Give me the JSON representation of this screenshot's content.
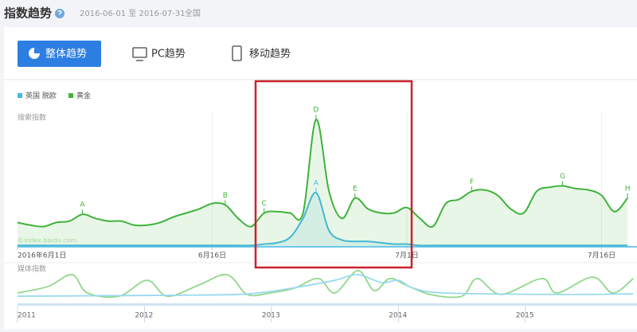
{
  "header": {
    "title": "指数趋势",
    "date_range": "2016-06-01 至 2016-07-31",
    "region": "全国"
  },
  "tabs": [
    "整体趋势",
    "PC趋势",
    "移动趋势"
  ],
  "chart_data": [
    {
      "type": "line",
      "area": true,
      "subtitle": "搜索指数",
      "watermark": "©index.baidu.com",
      "categories": [
        "2016年6月1日",
        null,
        null,
        null,
        null,
        null,
        null,
        null,
        null,
        null,
        null,
        null,
        null,
        null,
        null,
        "6月16日",
        null,
        null,
        null,
        null,
        null,
        null,
        null,
        null,
        null,
        null,
        null,
        null,
        null,
        null,
        "7月1日",
        null,
        null,
        null,
        null,
        null,
        null,
        null,
        null,
        null,
        null,
        null,
        null,
        null,
        null,
        "7月16日",
        null,
        null
      ],
      "ylim": [
        0,
        100
      ],
      "grid": true,
      "series": [
        {
          "name": "英国 脱欧",
          "color": "#46b8e6",
          "values": [
            1,
            1,
            1,
            1,
            1,
            1,
            1,
            1,
            1,
            1,
            1,
            1,
            1,
            1,
            1,
            1,
            1,
            1,
            1,
            2,
            3,
            7,
            21,
            40,
            12,
            5,
            4,
            4,
            3,
            2,
            2,
            1,
            1,
            1,
            1,
            1,
            1,
            1,
            1,
            1,
            1,
            1,
            1,
            1,
            1,
            1,
            1,
            1
          ]
        },
        {
          "name": "黄金",
          "color": "#3fb33b",
          "values": [
            18,
            16,
            15,
            18,
            19,
            24,
            21,
            19,
            19,
            16,
            16,
            18,
            22,
            25,
            28,
            32,
            31,
            21,
            15,
            25,
            26,
            25,
            25,
            94,
            41,
            21,
            36,
            28,
            25,
            25,
            29,
            21,
            15,
            32,
            35,
            41,
            42,
            38,
            28,
            25,
            41,
            44,
            45,
            43,
            42,
            38,
            26,
            36
          ]
        }
      ],
      "annotations": [
        {
          "text": "A",
          "series": 1,
          "index": 5
        },
        {
          "text": "B",
          "series": 1,
          "index": 16
        },
        {
          "text": "C",
          "series": 1,
          "index": 19
        },
        {
          "text": "D",
          "series": 1,
          "index": 23
        },
        {
          "text": "A",
          "series": 0,
          "index": 23
        },
        {
          "text": "E",
          "series": 1,
          "index": 26
        },
        {
          "text": "F",
          "series": 1,
          "index": 35
        },
        {
          "text": "G",
          "series": 1,
          "index": 42
        },
        {
          "text": "H",
          "series": 1,
          "index": 47
        }
      ]
    },
    {
      "type": "line",
      "subtitle": "媒体指数",
      "xlim": [
        2011,
        2015.88
      ],
      "xticks": [
        2011,
        2012,
        2013,
        2014,
        2015
      ],
      "ylim": [
        0,
        100
      ],
      "series": [
        {
          "color": "#8fd88a",
          "x": [
            2011.0,
            2011.24,
            2011.43,
            2011.55,
            2011.8,
            2012.02,
            2012.18,
            2012.43,
            2012.65,
            2012.81,
            2012.99,
            2013.18,
            2013.37,
            2013.5,
            2013.68,
            2013.81,
            2013.93,
            2014.06,
            2014.25,
            2014.5,
            2014.62,
            2014.81,
            2015.13,
            2015.25,
            2015.53,
            2015.69,
            2015.85
          ],
          "values": [
            19,
            41,
            81,
            19,
            8,
            62,
            8,
            46,
            81,
            14,
            19,
            35,
            68,
            19,
            95,
            27,
            68,
            46,
            14,
            8,
            68,
            14,
            68,
            19,
            73,
            19,
            68
          ]
        },
        {
          "color": "#9ad9ee",
          "x": [
            2011.0,
            2012.12,
            2012.74,
            2012.99,
            2013.24,
            2013.5,
            2013.68,
            2013.87,
            2014.0,
            2014.12,
            2014.37,
            2015.25,
            2015.85
          ],
          "values": [
            8,
            11,
            14,
            24,
            41,
            62,
            81,
            54,
            62,
            35,
            19,
            14,
            16
          ]
        }
      ]
    }
  ]
}
